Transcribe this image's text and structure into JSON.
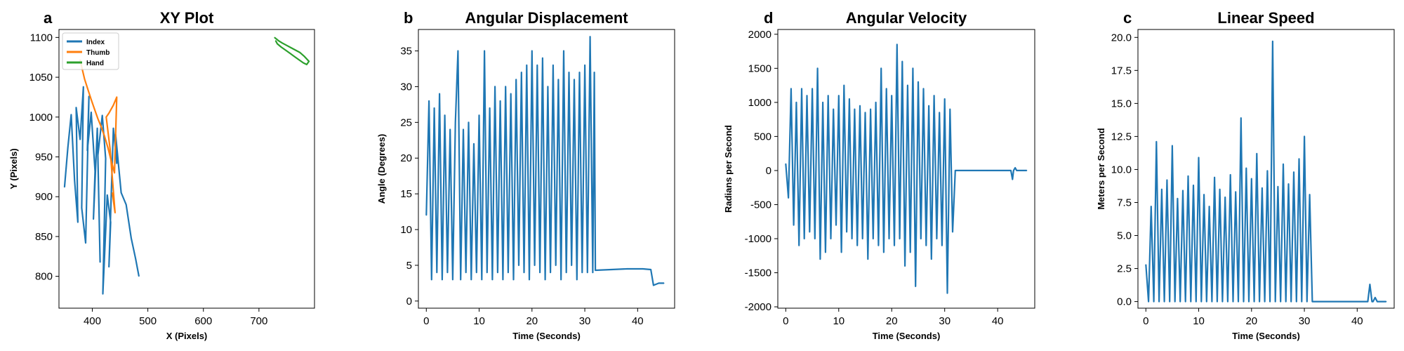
{
  "figure": {
    "colors": {
      "index": "#1f77b4",
      "thumb": "#ff7f0e",
      "hand": "#2ca02c",
      "line": "#1f77b4"
    }
  },
  "chart_data": [
    {
      "letter": "a",
      "type": "line",
      "title": "XY Plot",
      "xlabel": "X (Pixels)",
      "ylabel": "Y (Pixels)",
      "xlim": [
        340,
        800
      ],
      "ylim": [
        760,
        1110
      ],
      "xticks": [
        400,
        500,
        600,
        700
      ],
      "yticks": [
        800,
        850,
        900,
        950,
        1000,
        1050,
        1100
      ],
      "grid": false,
      "legend": {
        "position": "top-left",
        "entries": [
          "Index",
          "Thumb",
          "Hand"
        ]
      },
      "series": [
        {
          "name": "Index",
          "color": "#1f77b4",
          "x": [
            350,
            356,
            362,
            368,
            374,
            371,
            378,
            384,
            381,
            388,
            394,
            391,
            398,
            405,
            402,
            409,
            414,
            410,
            418,
            424,
            419,
            427,
            433,
            430,
            438,
            444,
            442,
            452,
            461,
            470,
            478,
            484
          ],
          "y": [
            912,
            962,
            1003,
            921,
            868,
            1012,
            972,
            1038,
            886,
            842,
            1026,
            958,
            1006,
            932,
            872,
            986,
            818,
            952,
            1002,
            948,
            778,
            902,
            868,
            812,
            986,
            942,
            978,
            905,
            890,
            848,
            822,
            800
          ]
        },
        {
          "name": "Thumb",
          "color": "#ff7f0e",
          "x": [
            378,
            382,
            386,
            392,
            398,
            404,
            410,
            416,
            422,
            428,
            433,
            440,
            444,
            438,
            430,
            425,
            432,
            441,
            436
          ],
          "y": [
            1072,
            1060,
            1048,
            1035,
            1022,
            1010,
            998,
            988,
            976,
            962,
            948,
            930,
            1025,
            1015,
            1005,
            1000,
            960,
            880,
            905
          ]
        },
        {
          "name": "Hand",
          "color": "#2ca02c",
          "x": [
            728,
            735,
            742,
            750,
            758,
            766,
            774,
            782,
            790,
            786,
            780,
            772,
            764,
            756,
            748,
            740,
            733,
            730
          ],
          "y": [
            1100,
            1096,
            1093,
            1090,
            1087,
            1084,
            1081,
            1076,
            1070,
            1066,
            1068,
            1072,
            1076,
            1080,
            1084,
            1088,
            1092,
            1096
          ]
        }
      ]
    },
    {
      "letter": "b",
      "type": "line",
      "title": "Angular Displacement",
      "xlabel": "Time (Seconds)",
      "ylabel": "Angle (Degrees)",
      "xlim": [
        -1.5,
        47
      ],
      "ylim": [
        -1,
        38
      ],
      "xticks": [
        0,
        10,
        20,
        30,
        40
      ],
      "yticks": [
        0,
        5,
        10,
        15,
        20,
        25,
        30,
        35
      ],
      "grid": false,
      "series": [
        {
          "color": "#1f77b4",
          "x": [
            0,
            0.5,
            1,
            1.5,
            2,
            2.5,
            3,
            3.5,
            4,
            4.5,
            5,
            5.5,
            6,
            6.5,
            7,
            7.5,
            8,
            8.5,
            9,
            9.5,
            10,
            10.5,
            11,
            11.5,
            12,
            12.5,
            13,
            13.5,
            14,
            14.5,
            15,
            15.5,
            16,
            16.5,
            17,
            17.5,
            18,
            18.5,
            19,
            19.5,
            20,
            20.5,
            21,
            21.5,
            22,
            22.5,
            23,
            23.5,
            24,
            24.5,
            25,
            25.5,
            26,
            26.5,
            27,
            27.5,
            28,
            28.5,
            29,
            29.5,
            30,
            30.5,
            31,
            31.5,
            31.8,
            32,
            35,
            38,
            41,
            42.5,
            43,
            44,
            45
          ],
          "y": [
            12,
            28,
            3,
            27,
            4,
            29,
            3,
            26,
            4,
            24,
            3,
            25,
            35,
            3,
            24,
            4,
            25,
            3,
            22,
            4,
            26,
            3,
            35,
            4,
            27,
            3,
            30,
            4,
            28,
            3,
            30,
            4,
            29,
            3,
            31,
            5,
            32,
            4,
            33,
            3,
            35,
            5,
            33,
            4,
            34,
            3,
            30,
            4,
            33,
            5,
            31,
            3,
            35,
            4,
            32,
            5,
            31,
            3,
            32,
            4,
            33,
            4,
            37,
            4,
            32,
            4.3,
            4.4,
            4.5,
            4.5,
            4.4,
            2.2,
            2.5,
            2.5
          ]
        }
      ]
    },
    {
      "letter": "d",
      "type": "line",
      "title": "Angular Velocity",
      "xlabel": "Time (Seconds)",
      "ylabel": "Radians per Second",
      "xlim": [
        -1.5,
        47
      ],
      "ylim": [
        -2020,
        2070
      ],
      "xticks": [
        0,
        10,
        20,
        30,
        40
      ],
      "yticks": [
        -2000,
        -1500,
        -1000,
        -500,
        0,
        500,
        1000,
        1500,
        2000
      ],
      "grid": false,
      "series": [
        {
          "color": "#1f77b4",
          "x": [
            0,
            0.5,
            1,
            1.5,
            2,
            2.5,
            3,
            3.5,
            4,
            4.5,
            5,
            5.5,
            6,
            6.5,
            7,
            7.5,
            8,
            8.5,
            9,
            9.5,
            10,
            10.5,
            11,
            11.5,
            12,
            12.5,
            13,
            13.5,
            14,
            14.5,
            15,
            15.5,
            16,
            16.5,
            17,
            17.5,
            18,
            18.5,
            19,
            19.5,
            20,
            20.5,
            21,
            21.5,
            22,
            22.5,
            23,
            23.5,
            24,
            24.5,
            25,
            25.5,
            26,
            26.5,
            27,
            27.5,
            28,
            28.5,
            29,
            29.5,
            30,
            30.5,
            31,
            31.5,
            32,
            38,
            42.5,
            42.8,
            43,
            43.3,
            43.6,
            45.5
          ],
          "y": [
            100,
            -400,
            1200,
            -800,
            1000,
            -1100,
            1200,
            -1000,
            1100,
            -900,
            1200,
            -1000,
            1500,
            -1300,
            1000,
            -1200,
            1100,
            -1000,
            900,
            -800,
            1100,
            -1200,
            1250,
            -900,
            1050,
            -1000,
            900,
            -1100,
            950,
            -1000,
            850,
            -1300,
            900,
            -1000,
            1000,
            -1100,
            1500,
            -1200,
            1200,
            -1000,
            1100,
            -1100,
            1850,
            -1000,
            1600,
            -1400,
            1250,
            -1200,
            1500,
            -1700,
            1300,
            -1000,
            1200,
            -1100,
            950,
            -1300,
            1100,
            -1000,
            850,
            -1100,
            1050,
            -1800,
            900,
            -900,
            0,
            0,
            0,
            -130,
            0,
            40,
            0,
            0
          ]
        }
      ]
    },
    {
      "letter": "c",
      "type": "line",
      "title": "Linear Speed",
      "xlabel": "Time (Seconds)",
      "ylabel": "Meters per Second",
      "xlim": [
        -1.5,
        47
      ],
      "ylim": [
        -0.5,
        20.6
      ],
      "xticks": [
        0,
        10,
        20,
        30,
        40
      ],
      "yticks": [
        0.0,
        2.5,
        5.0,
        7.5,
        10.0,
        12.5,
        15.0,
        17.5,
        20.0
      ],
      "grid": false,
      "series": [
        {
          "color": "#1f77b4",
          "x": [
            0,
            0.5,
            1,
            1.5,
            2,
            2.5,
            3,
            3.5,
            4,
            4.5,
            5,
            5.5,
            6,
            6.5,
            7,
            7.5,
            8,
            8.5,
            9,
            9.5,
            10,
            10.5,
            11,
            11.5,
            12,
            12.5,
            13,
            13.5,
            14,
            14.5,
            15,
            15.5,
            16,
            16.5,
            17,
            17.5,
            18,
            18.5,
            19,
            19.5,
            20,
            20.5,
            21,
            21.5,
            22,
            22.5,
            23,
            23.5,
            24,
            24.5,
            25,
            25.5,
            26,
            26.5,
            27,
            27.5,
            28,
            28.5,
            29,
            29.5,
            30,
            30.5,
            31,
            31.5,
            32,
            42,
            42.4,
            42.8,
            43,
            43.4,
            43.8,
            45.5
          ],
          "y": [
            2.8,
            0,
            7.2,
            0,
            12.1,
            0,
            8.5,
            0,
            9.2,
            0,
            11.8,
            0,
            7.8,
            0,
            8.4,
            0,
            9.5,
            0,
            8.8,
            0,
            10.9,
            0,
            8.1,
            0,
            7.2,
            0,
            9.4,
            0,
            8.5,
            0,
            7.9,
            0,
            9.6,
            0,
            8.3,
            0,
            13.9,
            0,
            10.1,
            0,
            9.3,
            0,
            11.2,
            0,
            8.6,
            0,
            9.9,
            0,
            19.7,
            0,
            8.7,
            0,
            10.4,
            0,
            8.9,
            0,
            9.8,
            0,
            10.8,
            0,
            12.5,
            0,
            8.1,
            0,
            0,
            0,
            1.3,
            0,
            0,
            0.3,
            0,
            0
          ]
        }
      ]
    }
  ]
}
